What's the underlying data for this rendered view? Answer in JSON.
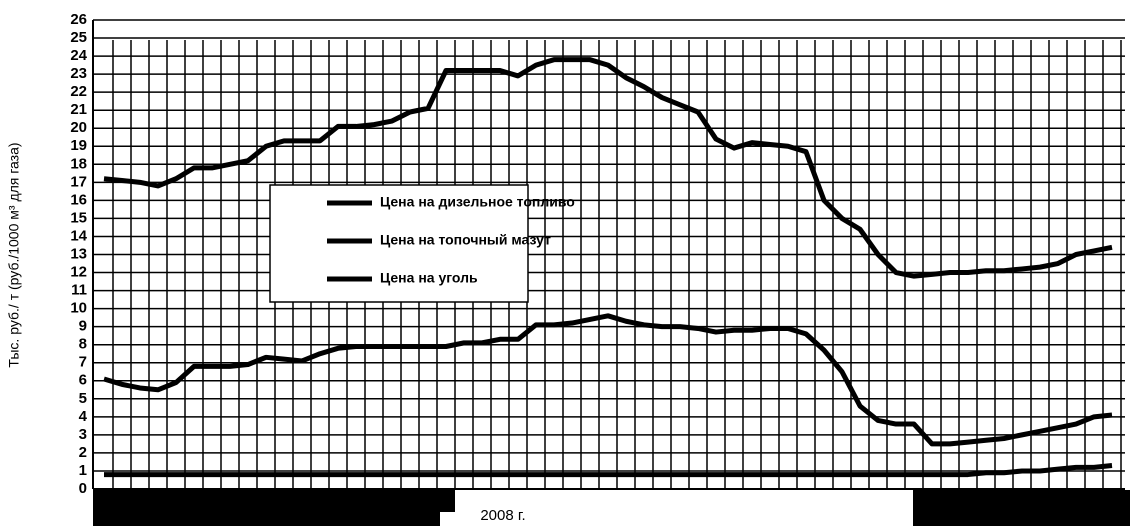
{
  "chart_data": {
    "type": "line",
    "y_label": "Тыс. руб./ т (руб./1000 м³ для газа)",
    "x_label": "2008 г.",
    "categories": [
      null,
      null,
      null,
      null,
      null,
      null,
      null,
      null,
      null,
      null,
      null,
      null,
      null,
      null,
      null,
      null,
      null,
      null,
      null,
      null,
      null,
      null,
      null,
      null,
      null,
      null,
      null,
      null,
      null,
      null,
      null,
      null,
      null,
      null,
      null,
      null,
      null,
      null,
      null,
      null,
      null,
      null,
      null,
      null,
      null,
      null,
      null,
      null,
      null,
      null,
      null,
      null,
      null,
      null,
      null,
      null,
      null
    ],
    "series": [
      {
        "name": "Цена на дизельное топливо",
        "color": "#000000",
        "values": [
          17.2,
          17.1,
          17.0,
          16.8,
          17.2,
          17.8,
          17.8,
          18.0,
          18.2,
          19.0,
          19.3,
          19.3,
          19.3,
          20.1,
          20.1,
          20.2,
          20.4,
          20.9,
          21.1,
          23.2,
          23.2,
          23.2,
          23.2,
          22.9,
          23.5,
          23.8,
          23.8,
          23.8,
          23.5,
          22.8,
          22.3,
          21.7,
          21.3,
          20.9,
          19.4,
          18.9,
          19.2,
          19.1,
          19.0,
          18.7,
          16.0,
          15.0,
          14.4,
          13.0,
          12.0,
          11.8,
          11.9,
          12.0,
          12.0,
          12.1,
          12.1,
          12.2,
          12.3,
          12.5,
          13.0,
          13.2,
          13.4
        ]
      },
      {
        "name": "Цена на топочный мазут",
        "color": "#000000",
        "values": [
          6.1,
          5.8,
          5.6,
          5.5,
          5.9,
          6.8,
          6.8,
          6.8,
          6.9,
          7.3,
          7.2,
          7.1,
          7.5,
          7.8,
          7.9,
          7.9,
          7.9,
          7.9,
          7.9,
          7.9,
          8.1,
          8.1,
          8.3,
          8.3,
          9.1,
          9.1,
          9.2,
          9.4,
          9.6,
          9.3,
          9.1,
          9.0,
          9.0,
          8.9,
          8.7,
          8.8,
          8.8,
          8.9,
          8.9,
          8.6,
          7.7,
          6.5,
          4.6,
          3.8,
          3.6,
          3.6,
          2.5,
          2.5,
          2.6,
          2.7,
          2.8,
          3.0,
          3.2,
          3.4,
          3.6,
          4.0,
          4.1
        ]
      },
      {
        "name": "Цена на уголь",
        "color": "#000000",
        "values": [
          0.8,
          0.8,
          0.8,
          0.8,
          0.8,
          0.8,
          0.8,
          0.8,
          0.8,
          0.8,
          0.8,
          0.8,
          0.8,
          0.8,
          0.8,
          0.8,
          0.8,
          0.8,
          0.8,
          0.8,
          0.8,
          0.8,
          0.8,
          0.8,
          0.8,
          0.8,
          0.8,
          0.8,
          0.8,
          0.8,
          0.8,
          0.8,
          0.8,
          0.8,
          0.8,
          0.8,
          0.8,
          0.8,
          0.8,
          0.8,
          0.8,
          0.8,
          0.8,
          0.8,
          0.8,
          0.8,
          0.8,
          0.8,
          0.8,
          0.9,
          0.9,
          1.0,
          1.0,
          1.1,
          1.2,
          1.2,
          1.3
        ]
      }
    ],
    "ylim": [
      0,
      26
    ],
    "yticks": [
      0,
      1,
      2,
      3,
      4,
      5,
      6,
      7,
      8,
      9,
      10,
      11,
      12,
      13,
      14,
      15,
      16,
      17,
      18,
      19,
      20,
      21,
      22,
      23,
      24,
      25,
      26
    ],
    "grid": true
  }
}
